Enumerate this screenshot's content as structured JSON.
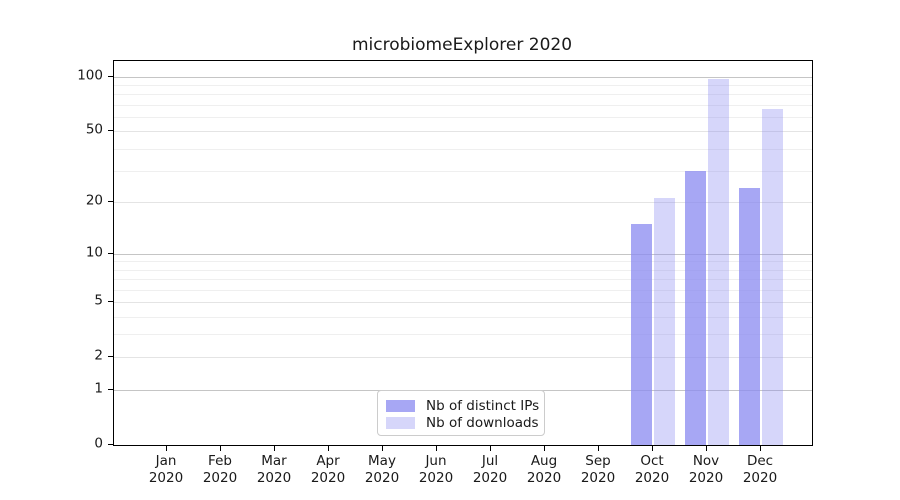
{
  "title": "microbiomeExplorer 2020",
  "chart_data": {
    "type": "bar",
    "title": "microbiomeExplorer 2020",
    "categories": [
      "Jan 2020",
      "Feb 2020",
      "Mar 2020",
      "Apr 2020",
      "May 2020",
      "Jun 2020",
      "Jul 2020",
      "Aug 2020",
      "Sep 2020",
      "Oct 2020",
      "Nov 2020",
      "Dec 2020"
    ],
    "series": [
      {
        "name": "Nb of distinct IPs",
        "color": "rgba(137,137,240,0.75)",
        "values": [
          0,
          0,
          0,
          0,
          0,
          0,
          0,
          0,
          0,
          15,
          30,
          24
        ]
      },
      {
        "name": "Nb of downloads",
        "color": "rgba(137,137,240,0.35)",
        "values": [
          0,
          0,
          0,
          0,
          0,
          0,
          0,
          0,
          0,
          21,
          97,
          66
        ]
      }
    ],
    "yscale": "log1p",
    "yticks": [
      0,
      1,
      2,
      5,
      10,
      20,
      50,
      100
    ],
    "minor_grid_values": [
      3,
      4,
      6,
      7,
      8,
      9,
      30,
      40,
      60,
      70,
      80,
      90
    ],
    "ylim": [
      0,
      122
    ],
    "xlabel": "",
    "ylabel": "",
    "grid": true,
    "legend_position": "lower center"
  },
  "colors": {
    "grid_major": "#c5c5c5",
    "grid_mid": "#e4e4e4",
    "grid_minor": "#efefef",
    "spine": "#000000",
    "text": "#1a1a1a",
    "legend_border": "#cccccc",
    "background": "#ffffff"
  }
}
